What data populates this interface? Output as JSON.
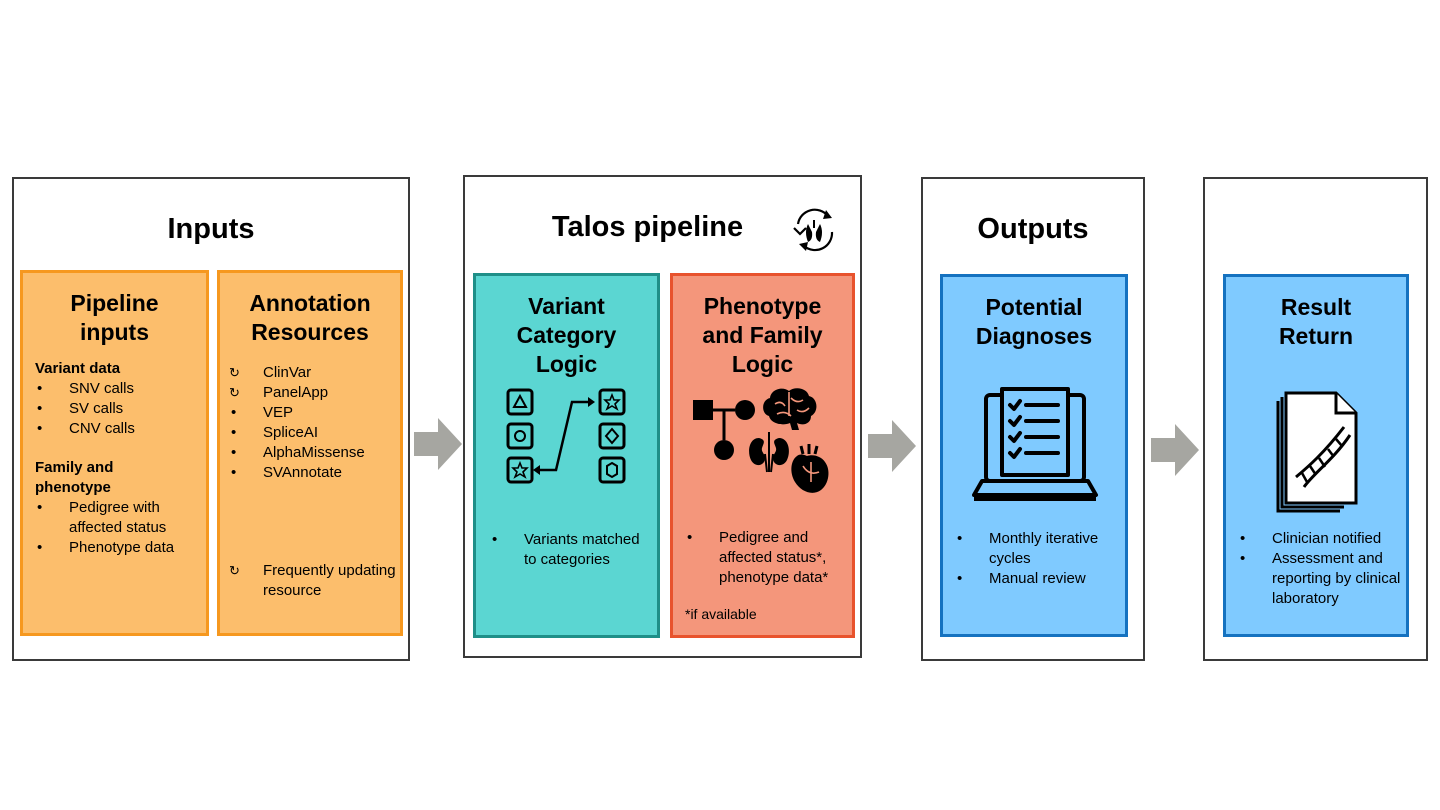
{
  "inputs": {
    "title": "Inputs",
    "pipeline_inputs": {
      "title_line1": "Pipeline",
      "title_line2": "inputs",
      "variant_heading": "Variant data",
      "variant_items": [
        "SNV calls",
        "SV calls",
        "CNV calls"
      ],
      "family_heading_line1": "Family and",
      "family_heading_line2": "phenotype",
      "family_items": [
        "Pedigree with affected status",
        "Phenotype data"
      ]
    },
    "annotation": {
      "title_line1": "Annotation",
      "title_line2": "Resources",
      "items": [
        {
          "label": "ClinVar",
          "marker": "refresh"
        },
        {
          "label": "PanelApp",
          "marker": "refresh"
        },
        {
          "label": "VEP",
          "marker": "bullet"
        },
        {
          "label": "SpliceAI",
          "marker": "bullet"
        },
        {
          "label": "AlphaMissense",
          "marker": "bullet"
        },
        {
          "label": "SVAnnotate",
          "marker": "bullet"
        }
      ],
      "legend_label": "Frequently updating resource"
    }
  },
  "talos": {
    "title": "Talos pipeline",
    "variant_category": {
      "title_line1": "Variant",
      "title_line2": "Category",
      "title_line3": "Logic",
      "items": [
        "Variants matched to categories"
      ]
    },
    "phenotype_family": {
      "title_line1": "Phenotype",
      "title_line2": "and Family",
      "title_line3": "Logic",
      "items": [
        "Pedigree and affected status*, phenotype data*"
      ],
      "note": "*if available"
    }
  },
  "outputs": {
    "title": "Outputs",
    "potential_diagnoses": {
      "title_line1": "Potential",
      "title_line2": "Diagnoses",
      "items": [
        "Monthly iterative cycles",
        "Manual review"
      ]
    }
  },
  "result_return": {
    "title_line1": "Result",
    "title_line2": "Return",
    "items": [
      "Clinician notified",
      "Assessment and reporting by clinical laboratory"
    ]
  },
  "icons": [
    "refresh-icon",
    "recycle-icon",
    "category-shapes-icon",
    "pedigree-icon",
    "brain-icon",
    "kidneys-icon",
    "heart-icon",
    "laptop-checklist-icon",
    "dna-document-icon",
    "flow-arrow-icon"
  ],
  "colors": {
    "orange_fill": "#fcbe6c",
    "orange_border": "#f6981f",
    "teal_fill": "#5bd6d2",
    "teal_border": "#1f8f88",
    "salmon_fill": "#f4967b",
    "salmon_border": "#e8532d",
    "blue_fill": "#7fcaff",
    "blue_border": "#1572c0",
    "arrow": "#a6a6a1"
  }
}
